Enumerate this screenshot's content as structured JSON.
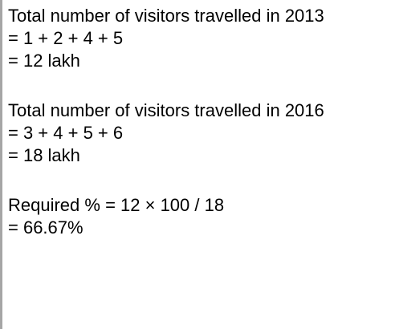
{
  "block_2013": {
    "heading": "Total number of visitors travelled in 2013",
    "sum": "= 1 + 2 + 4 + 5",
    "result": "= 12 lakh"
  },
  "block_2016": {
    "heading": "Total number of visitors travelled in 2016",
    "sum": "= 3 + 4 + 5 + 6",
    "result": "= 18 lakh"
  },
  "block_percent": {
    "formula": "Required % = 12 × 100 / 18",
    "result": "= 66.67%"
  }
}
